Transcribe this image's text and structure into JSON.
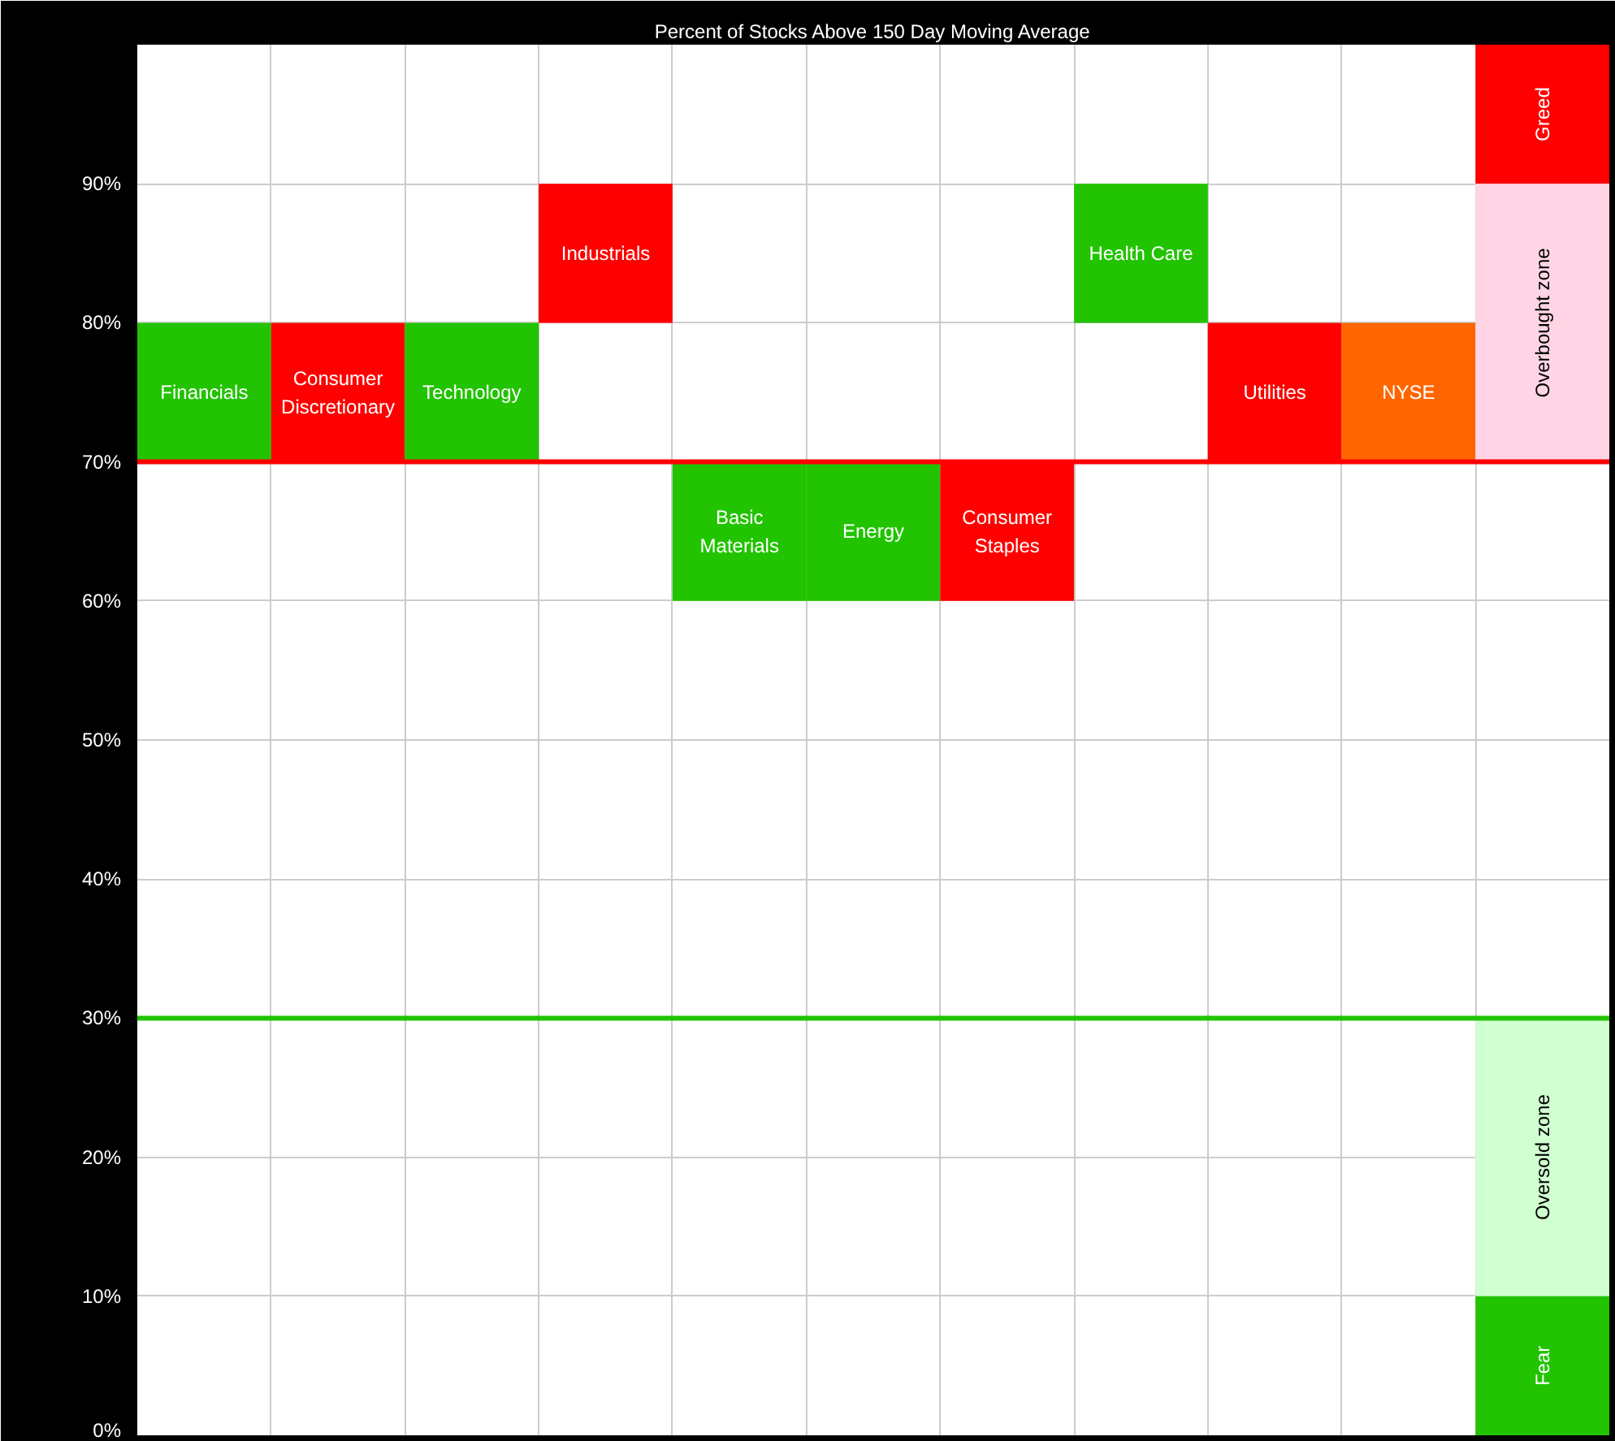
{
  "chart_data": {
    "type": "bar",
    "title": "Percent of Stocks Above 150 Day Moving Average",
    "categories": [
      null,
      null,
      null,
      null,
      null,
      null,
      null,
      null,
      null,
      null,
      null
    ],
    "series": [
      {
        "name": "Financials",
        "color": "#22c300",
        "values": [
          10,
          null,
          null,
          null,
          null,
          null,
          null,
          null,
          null,
          null,
          null
        ],
        "base": [
          70,
          null,
          null,
          null,
          null,
          null,
          null,
          null,
          null,
          null,
          null
        ]
      },
      {
        "name": "Consumer Discretionary",
        "color": "#ff0000",
        "values": [
          null,
          10,
          null,
          null,
          null,
          null,
          null,
          null,
          null,
          null,
          null
        ],
        "base": [
          null,
          70,
          null,
          null,
          null,
          null,
          null,
          null,
          null,
          null,
          null
        ]
      },
      {
        "name": "Technology",
        "color": "#22c300",
        "values": [
          null,
          null,
          10,
          null,
          null,
          null,
          null,
          null,
          null,
          null,
          null
        ],
        "base": [
          null,
          null,
          70,
          null,
          null,
          null,
          null,
          null,
          null,
          null,
          null
        ]
      },
      {
        "name": "Industrials",
        "color": "#ff0000",
        "values": [
          null,
          null,
          null,
          10,
          null,
          null,
          null,
          null,
          null,
          null,
          null
        ],
        "base": [
          null,
          null,
          null,
          80,
          null,
          null,
          null,
          null,
          null,
          null,
          null
        ]
      },
      {
        "name": "Basic Materials",
        "color": "#22c300",
        "values": [
          null,
          null,
          null,
          null,
          10,
          null,
          null,
          null,
          null,
          null,
          null
        ],
        "base": [
          null,
          null,
          null,
          null,
          60,
          null,
          null,
          null,
          null,
          null,
          null
        ]
      },
      {
        "name": "Energy",
        "color": "#22c300",
        "values": [
          null,
          null,
          null,
          null,
          null,
          10,
          null,
          null,
          null,
          null,
          null
        ],
        "base": [
          null,
          null,
          null,
          null,
          null,
          60,
          null,
          null,
          null,
          null,
          null
        ]
      },
      {
        "name": "Consumer Staples",
        "color": "#ff0000",
        "values": [
          null,
          null,
          null,
          null,
          null,
          null,
          10,
          null,
          null,
          null,
          null
        ],
        "base": [
          null,
          null,
          null,
          null,
          null,
          null,
          60,
          null,
          null,
          null,
          null
        ]
      },
      {
        "name": "Health Care",
        "color": "#22c300",
        "values": [
          null,
          null,
          null,
          null,
          null,
          null,
          null,
          10,
          null,
          null,
          null
        ],
        "base": [
          null,
          null,
          null,
          null,
          null,
          null,
          null,
          80,
          null,
          null,
          null
        ]
      },
      {
        "name": "Utilities",
        "color": "#ff0000",
        "values": [
          null,
          null,
          null,
          null,
          null,
          null,
          null,
          null,
          10,
          null,
          null
        ],
        "base": [
          null,
          null,
          null,
          null,
          null,
          null,
          null,
          null,
          70,
          null,
          null
        ]
      },
      {
        "name": "NYSE",
        "color": "#ff6600",
        "values": [
          null,
          null,
          null,
          null,
          null,
          null,
          null,
          null,
          null,
          10,
          null
        ],
        "base": [
          null,
          null,
          null,
          null,
          null,
          null,
          null,
          null,
          null,
          70,
          null
        ]
      },
      {
        "name": "Greed",
        "color": "#ff0000",
        "values": [
          null,
          null,
          null,
          null,
          null,
          null,
          null,
          null,
          null,
          null,
          10
        ],
        "base": [
          null,
          null,
          null,
          null,
          null,
          null,
          null,
          null,
          null,
          null,
          90
        ]
      },
      {
        "name": "Overbought zone",
        "color": "#ffd5e5",
        "values": [
          null,
          null,
          null,
          null,
          null,
          null,
          null,
          null,
          null,
          null,
          20
        ],
        "base": [
          null,
          null,
          null,
          null,
          null,
          null,
          null,
          null,
          null,
          null,
          70
        ]
      },
      {
        "name": "Oversold zone",
        "color": "#d0ffd0",
        "values": [
          null,
          null,
          null,
          null,
          null,
          null,
          null,
          null,
          null,
          null,
          20
        ],
        "base": [
          null,
          null,
          null,
          null,
          null,
          null,
          null,
          null,
          null,
          null,
          10
        ]
      },
      {
        "name": "Fear",
        "color": "#22c300",
        "values": [
          null,
          null,
          null,
          null,
          null,
          null,
          null,
          null,
          null,
          null,
          10
        ],
        "base": [
          null,
          null,
          null,
          null,
          null,
          null,
          null,
          null,
          null,
          null,
          0
        ]
      }
    ],
    "ylim": [
      0,
      100
    ],
    "yticks": [
      {
        "value": 0,
        "label": "0%"
      },
      {
        "value": 10,
        "label": "10%"
      },
      {
        "value": 20,
        "label": "20%"
      },
      {
        "value": 30,
        "label": "30%"
      },
      {
        "value": 40,
        "label": "40%"
      },
      {
        "value": 50,
        "label": "50%"
      },
      {
        "value": 60,
        "label": "60%"
      },
      {
        "value": 70,
        "label": "70%"
      },
      {
        "value": 80,
        "label": "80%"
      },
      {
        "value": 90,
        "label": "90%"
      }
    ],
    "ref_lines": [
      {
        "axis": "y",
        "value": 70,
        "color": "#ff0000"
      },
      {
        "axis": "y",
        "value": 30,
        "color": "#22c300"
      }
    ],
    "grid": true,
    "tick_labels": "y"
  }
}
